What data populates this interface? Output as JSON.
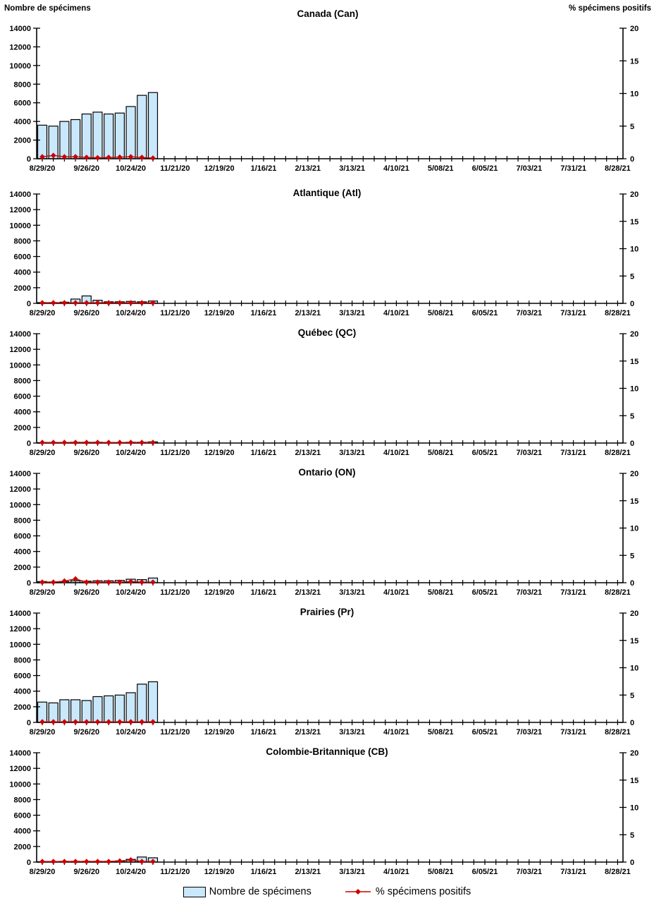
{
  "header": {
    "left_axis_label": "Nombre de spécimens",
    "right_axis_label": "% spécimens positifs"
  },
  "legend": {
    "items": [
      {
        "label": "Nombre de spécimens",
        "marker": "bar-swatch"
      },
      {
        "label": "% spécimens positifs",
        "marker": "line-diamond"
      }
    ]
  },
  "colors": {
    "background": "#FFFFFF",
    "bar_fill": "#C9E8FB",
    "bar_stroke": "#000000",
    "positive_line": "#CC0000",
    "axis": "#000000"
  },
  "chart_data": {
    "type": "bar+line dual-axis, 6 stacked panels",
    "x": {
      "tick_labels": [
        "8/29/20",
        "9/26/20",
        "10/24/20",
        "11/21/20",
        "12/19/20",
        "1/16/21",
        "2/13/21",
        "3/13/21",
        "4/10/21",
        "5/08/21",
        "6/05/21",
        "7/03/21",
        "7/31/21",
        "8/28/21"
      ],
      "label_every_n_ticks": 4,
      "total_weekly_ticks": 53,
      "data_weeks_with_values": 11
    },
    "y_left": {
      "label": "Nombre de spécimens",
      "min": 0,
      "max": 14000,
      "step": 2000
    },
    "y_right": {
      "label": "% spécimens positifs",
      "min": 0,
      "max": 20,
      "step": 5
    },
    "grid": "off",
    "legend_position": "bottom-center",
    "series_names": [
      "Nombre de spécimens",
      "% spécimens positifs"
    ],
    "charts": [
      {
        "title": "Canada (Can)",
        "specimens": [
          3600,
          3500,
          4000,
          4200,
          4800,
          5000,
          4800,
          4900,
          5600,
          6800,
          7100
        ],
        "percent_positive": [
          0.3,
          0.5,
          0.3,
          0.3,
          0.2,
          0.15,
          0.2,
          0.25,
          0.3,
          0.2,
          0.1
        ]
      },
      {
        "title": "Atlantique (Atl)",
        "specimens": [
          100,
          100,
          150,
          550,
          950,
          400,
          200,
          200,
          250,
          200,
          300
        ],
        "percent_positive": [
          0.1,
          0.1,
          0.1,
          0.1,
          0.1,
          0.1,
          0.1,
          0.1,
          0.1,
          0.1,
          0.1
        ]
      },
      {
        "title": "Québec (QC)",
        "specimens": [
          50,
          50,
          50,
          100,
          100,
          100,
          50,
          50,
          100,
          100,
          150
        ],
        "percent_positive": [
          0.1,
          0.1,
          0.1,
          0.1,
          0.1,
          0.1,
          0.1,
          0.1,
          0.1,
          0.1,
          0.1
        ]
      },
      {
        "title": "Ontario (ON)",
        "specimens": [
          150,
          100,
          150,
          250,
          200,
          250,
          250,
          300,
          450,
          400,
          600
        ],
        "percent_positive": [
          0.1,
          0.1,
          0.3,
          0.7,
          0.1,
          0.1,
          0.1,
          0.1,
          0.2,
          0.1,
          0.1
        ]
      },
      {
        "title": "Prairies (Pr)",
        "specimens": [
          2600,
          2500,
          2900,
          2900,
          2800,
          3300,
          3400,
          3500,
          3800,
          4900,
          5200
        ],
        "percent_positive": [
          0.1,
          0.1,
          0.1,
          0.1,
          0.1,
          0.1,
          0.1,
          0.1,
          0.1,
          0.1,
          0.1
        ]
      },
      {
        "title": "Colombie-Britannique (CB)",
        "specimens": [
          50,
          50,
          100,
          100,
          100,
          100,
          100,
          150,
          350,
          650,
          550
        ],
        "percent_positive": [
          0.1,
          0.1,
          0.1,
          0.1,
          0.1,
          0.1,
          0.1,
          0.2,
          0.4,
          0.1,
          0.1
        ]
      }
    ]
  }
}
